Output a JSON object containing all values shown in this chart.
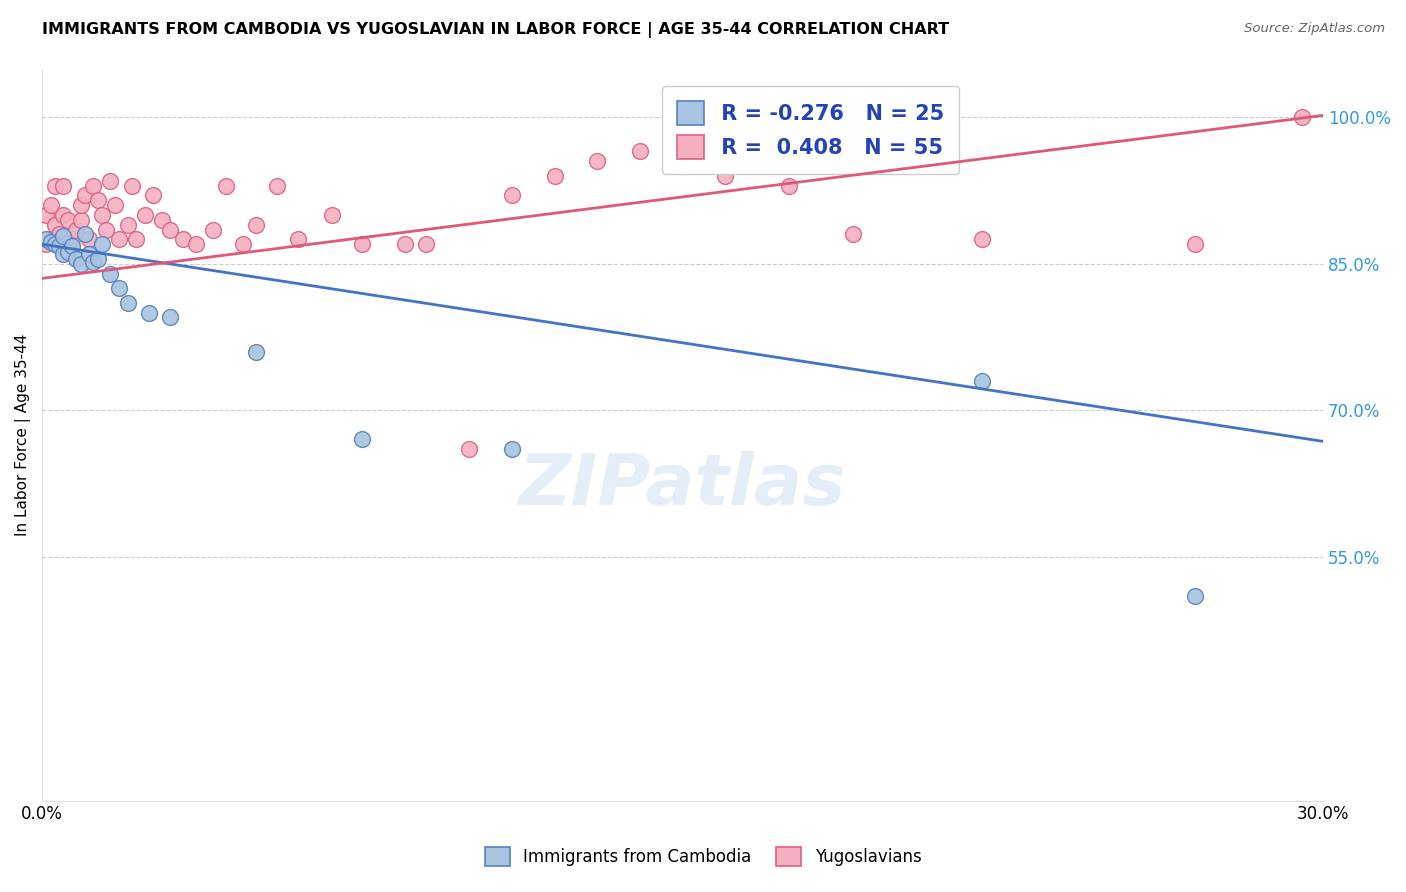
{
  "title": "IMMIGRANTS FROM CAMBODIA VS YUGOSLAVIAN IN LABOR FORCE | AGE 35-44 CORRELATION CHART",
  "source_text": "Source: ZipAtlas.com",
  "ylabel": "In Labor Force | Age 35-44",
  "xlim": [
    0.0,
    0.3
  ],
  "ylim": [
    0.3,
    1.05
  ],
  "xticks": [
    0.0,
    0.05,
    0.1,
    0.15,
    0.2,
    0.25,
    0.3
  ],
  "xticklabels": [
    "0.0%",
    "",
    "",
    "",
    "",
    "",
    "30.0%"
  ],
  "yticks_right": [
    1.0,
    0.85,
    0.7,
    0.55
  ],
  "ytick_labels_right": [
    "100.0%",
    "85.0%",
    "70.0%",
    "55.0%"
  ],
  "cambodia_R": -0.276,
  "cambodia_N": 25,
  "yugoslavian_R": 0.408,
  "yugoslavian_N": 55,
  "cambodia_color": "#a8c4e0",
  "cambodia_edge_color": "#5580c0",
  "cambodia_line_color": "#4472c4",
  "yugoslavian_color": "#f4afc0",
  "yugoslavian_edge_color": "#e06080",
  "yugoslavian_line_color": "#e05878",
  "legend_R_color": "#2244bb",
  "watermark": "ZIPatlas",
  "cambodia_x": [
    0.001,
    0.002,
    0.003,
    0.004,
    0.005,
    0.005,
    0.006,
    0.007,
    0.008,
    0.009,
    0.01,
    0.011,
    0.012,
    0.013,
    0.014,
    0.016,
    0.018,
    0.02,
    0.025,
    0.03,
    0.05,
    0.075,
    0.11,
    0.22,
    0.27
  ],
  "cambodia_y": [
    0.875,
    0.872,
    0.87,
    0.868,
    0.86,
    0.878,
    0.862,
    0.868,
    0.855,
    0.85,
    0.88,
    0.86,
    0.852,
    0.855,
    0.87,
    0.84,
    0.825,
    0.81,
    0.8,
    0.795,
    0.76,
    0.67,
    0.66,
    0.73,
    0.51
  ],
  "yugoslavian_x": [
    0.001,
    0.001,
    0.002,
    0.002,
    0.003,
    0.003,
    0.004,
    0.005,
    0.005,
    0.006,
    0.006,
    0.007,
    0.008,
    0.009,
    0.009,
    0.01,
    0.011,
    0.012,
    0.013,
    0.014,
    0.015,
    0.016,
    0.017,
    0.018,
    0.02,
    0.021,
    0.022,
    0.024,
    0.026,
    0.028,
    0.03,
    0.033,
    0.036,
    0.04,
    0.043,
    0.047,
    0.05,
    0.055,
    0.06,
    0.068,
    0.075,
    0.085,
    0.09,
    0.1,
    0.11,
    0.12,
    0.13,
    0.14,
    0.15,
    0.16,
    0.175,
    0.19,
    0.22,
    0.27,
    0.295
  ],
  "yugoslavian_y": [
    0.87,
    0.9,
    0.875,
    0.91,
    0.89,
    0.93,
    0.88,
    0.9,
    0.93,
    0.87,
    0.895,
    0.875,
    0.885,
    0.895,
    0.91,
    0.92,
    0.875,
    0.93,
    0.915,
    0.9,
    0.885,
    0.935,
    0.91,
    0.875,
    0.89,
    0.93,
    0.875,
    0.9,
    0.92,
    0.895,
    0.885,
    0.875,
    0.87,
    0.885,
    0.93,
    0.87,
    0.89,
    0.93,
    0.875,
    0.9,
    0.87,
    0.87,
    0.87,
    0.66,
    0.92,
    0.94,
    0.955,
    0.965,
    0.95,
    0.94,
    0.93,
    0.88,
    0.875,
    0.87,
    1.0
  ]
}
